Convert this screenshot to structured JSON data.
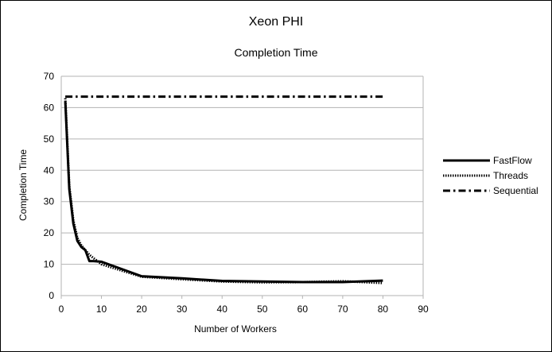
{
  "chart_data": {
    "type": "line",
    "title": "Xeon PHI",
    "subtitle": "Completion Time",
    "xlabel": "Number of Workers",
    "ylabel": "Completion Time",
    "xlim": [
      0,
      90
    ],
    "ylim": [
      0,
      70
    ],
    "xticks": [
      0,
      10,
      20,
      30,
      40,
      50,
      60,
      70,
      80,
      90
    ],
    "yticks": [
      0,
      10,
      20,
      30,
      40,
      50,
      60,
      70
    ],
    "grid": "horizontal",
    "legend_position": "right",
    "series": [
      {
        "name": "FastFlow",
        "style": "solid",
        "x": [
          1,
          2,
          3,
          4,
          5,
          6,
          7,
          8,
          10,
          15,
          20,
          30,
          40,
          50,
          60,
          70,
          80
        ],
        "y": [
          62,
          34,
          23,
          17.5,
          15.5,
          14.5,
          11,
          11,
          10.8,
          8.5,
          6.2,
          5.5,
          4.7,
          4.5,
          4.3,
          4.3,
          4.8
        ]
      },
      {
        "name": "Threads",
        "style": "dotted",
        "x": [
          1,
          2,
          3,
          4,
          5,
          6,
          7,
          8,
          10,
          15,
          20,
          30,
          40,
          50,
          60,
          70,
          80
        ],
        "y": [
          63,
          35,
          24,
          18.5,
          16,
          14.5,
          13,
          12,
          10,
          8,
          6,
          5.2,
          4.5,
          4.2,
          4.3,
          4.6,
          4
        ]
      },
      {
        "name": "Sequential",
        "style": "dash-dot",
        "x": [
          1,
          80
        ],
        "y": [
          63.5,
          63.5
        ]
      }
    ]
  }
}
